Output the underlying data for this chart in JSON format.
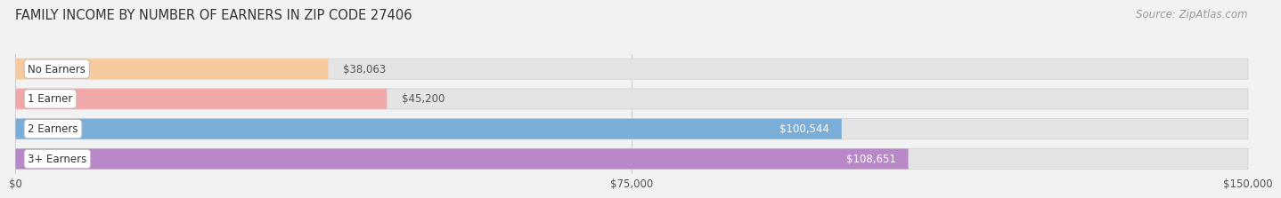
{
  "title": "FAMILY INCOME BY NUMBER OF EARNERS IN ZIP CODE 27406",
  "source": "Source: ZipAtlas.com",
  "categories": [
    "No Earners",
    "1 Earner",
    "2 Earners",
    "3+ Earners"
  ],
  "values": [
    38063,
    45200,
    100544,
    108651
  ],
  "bar_colors": [
    "#f7ca9e",
    "#f0a8a8",
    "#7aaed8",
    "#b888c8"
  ],
  "label_colors_inside": [
    "#ffffff",
    "#ffffff",
    "#ffffff",
    "#ffffff"
  ],
  "label_colors_outside": [
    "#555555",
    "#555555",
    "#555555",
    "#555555"
  ],
  "label_threshold": 60000,
  "xlim": [
    0,
    150000
  ],
  "xticks": [
    0,
    75000,
    150000
  ],
  "xtick_labels": [
    "$0",
    "$75,000",
    "$150,000"
  ],
  "background_color": "#f2f2f2",
  "bar_bg_color": "#e4e4e4",
  "bar_bg_border": "#d8d8d8",
  "title_fontsize": 10.5,
  "source_fontsize": 8.5,
  "label_fontsize": 8.5,
  "tick_fontsize": 8.5,
  "category_fontsize": 8.5,
  "grid_color": "#cccccc",
  "category_box_color": "#ffffff",
  "category_text_color": "#333333",
  "value_label_dark": "#555555",
  "value_label_light": "#ffffff"
}
